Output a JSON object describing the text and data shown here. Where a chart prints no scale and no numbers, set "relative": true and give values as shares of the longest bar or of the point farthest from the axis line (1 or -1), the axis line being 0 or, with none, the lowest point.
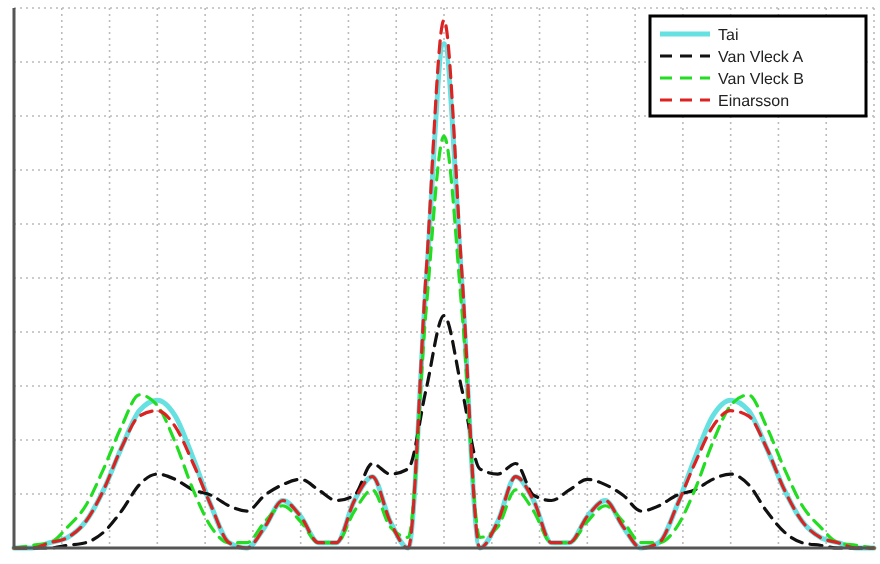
{
  "chart_data": {
    "type": "line",
    "relative": true,
    "grid": true,
    "legend": "top right",
    "categories": [
      null,
      null,
      null,
      null,
      null,
      null,
      null,
      null,
      null,
      null,
      null,
      null,
      null,
      null,
      null,
      null,
      null,
      null,
      null,
      null,
      null,
      null,
      null,
      null,
      null,
      null,
      null,
      null,
      null,
      null,
      null,
      null,
      null,
      null,
      null,
      null,
      null,
      null,
      null,
      null,
      null,
      null,
      null,
      null,
      null,
      null,
      null,
      null,
      null
    ],
    "series": [
      {
        "name": "Tai",
        "color": "#66e0e0",
        "line_style": "solid",
        "values": [
          0,
          0,
          0.01,
          0.02,
          0.05,
          0.11,
          0.19,
          0.26,
          0.28,
          0.25,
          0.17,
          0.08,
          0.01,
          0,
          0.04,
          0.09,
          0.06,
          0.01,
          0.01,
          0.09,
          0.135,
          0.05,
          0,
          0.5,
          0.955,
          0.5,
          0,
          0.05,
          0.135,
          0.09,
          0.01,
          0.01,
          0.06,
          0.09,
          0.04,
          0,
          0.01,
          0.08,
          0.17,
          0.25,
          0.28,
          0.26,
          0.19,
          0.11,
          0.05,
          0.02,
          0.01,
          0,
          0
        ]
      },
      {
        "name": "Van Vleck A",
        "color": "#111111",
        "line_style": "dashed",
        "values": [
          0,
          0,
          0,
          0.005,
          0.01,
          0.03,
          0.07,
          0.12,
          0.14,
          0.13,
          0.11,
          0.1,
          0.08,
          0.07,
          0.1,
          0.12,
          0.13,
          0.11,
          0.09,
          0.1,
          0.16,
          0.14,
          0.15,
          0.3,
          0.44,
          0.3,
          0.15,
          0.14,
          0.16,
          0.1,
          0.09,
          0.11,
          0.13,
          0.12,
          0.1,
          0.07,
          0.08,
          0.1,
          0.11,
          0.13,
          0.14,
          0.12,
          0.07,
          0.03,
          0.01,
          0.005,
          0,
          0,
          0
        ]
      },
      {
        "name": "Van Vleck B",
        "color": "#22dd22",
        "line_style": "dashed",
        "values": [
          0,
          0.005,
          0.01,
          0.04,
          0.08,
          0.15,
          0.23,
          0.29,
          0.27,
          0.2,
          0.11,
          0.04,
          0.01,
          0.01,
          0.05,
          0.08,
          0.05,
          0.01,
          0.01,
          0.07,
          0.11,
          0.04,
          0.02,
          0.45,
          0.78,
          0.45,
          0.02,
          0.04,
          0.11,
          0.07,
          0.01,
          0.01,
          0.05,
          0.08,
          0.05,
          0.01,
          0.01,
          0.04,
          0.11,
          0.2,
          0.27,
          0.29,
          0.23,
          0.15,
          0.08,
          0.04,
          0.01,
          0.005,
          0
        ]
      },
      {
        "name": "Einarsson",
        "color": "#dd2222",
        "line_style": "dashed",
        "values": [
          0,
          0,
          0.01,
          0.02,
          0.05,
          0.11,
          0.19,
          0.25,
          0.26,
          0.23,
          0.16,
          0.08,
          0.01,
          0,
          0.04,
          0.09,
          0.06,
          0.01,
          0.01,
          0.09,
          0.135,
          0.05,
          0,
          0.52,
          1,
          0.52,
          0,
          0.05,
          0.135,
          0.09,
          0.01,
          0.01,
          0.06,
          0.09,
          0.04,
          0,
          0.01,
          0.08,
          0.16,
          0.23,
          0.26,
          0.25,
          0.19,
          0.11,
          0.05,
          0.02,
          0.01,
          0,
          0
        ]
      }
    ]
  }
}
